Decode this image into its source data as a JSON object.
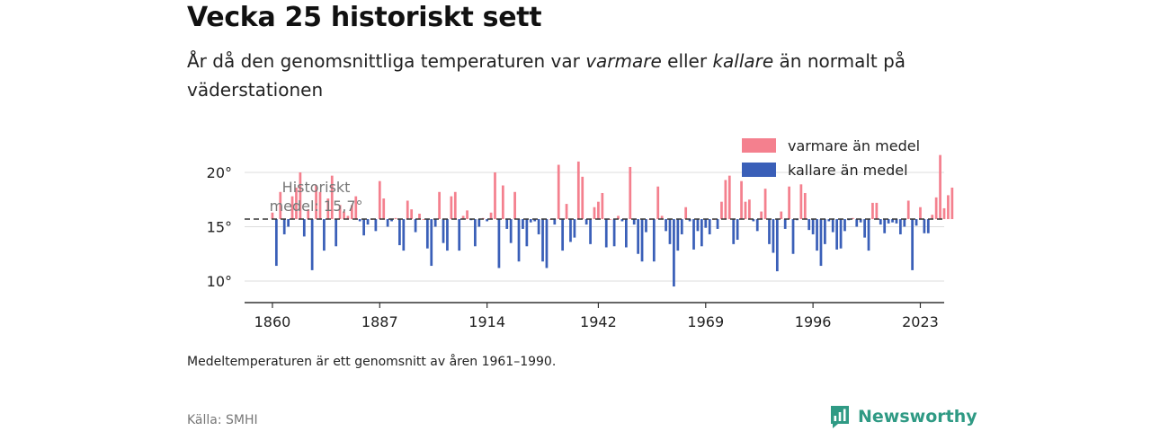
{
  "header": {
    "title": "Vecka 25 historiskt sett",
    "subtitle_part1": "År då den genomsnittliga temperaturen var ",
    "subtitle_em1": "varmare",
    "subtitle_part2": " eller ",
    "subtitle_em2": "kallare",
    "subtitle_part3": " än normalt på väderstationen"
  },
  "footer": {
    "note": "Medeltemperaturen är ett genomsnitt av åren 1961–1990.",
    "source": "Källa: SMHI",
    "brand": "Newsworthy",
    "brand_icon": "newsworthy-logo-icon"
  },
  "colors": {
    "warm": "#f4808e",
    "cold": "#3a5fb8",
    "baseline": "#333333",
    "grid": "#dddddd",
    "brand": "#2f9a84"
  },
  "chart_data": {
    "type": "bar",
    "baseline": 15.7,
    "baseline_label_line1": "Historiskt",
    "baseline_label_line2": "medel: 15,7°",
    "ylim": [
      8,
      22
    ],
    "y_ticks": [
      10,
      15,
      20
    ],
    "y_tick_labels": [
      "10°",
      "15°",
      "20°"
    ],
    "xlim": [
      1853,
      2029
    ],
    "x_ticks": [
      1860,
      1887,
      1914,
      1942,
      1969,
      1996,
      2023
    ],
    "x_tick_labels": [
      "1860",
      "1887",
      "1914",
      "1942",
      "1969",
      "1996",
      "2023"
    ],
    "legend": {
      "position": "top-right",
      "warm_label": "varmare än medel",
      "cold_label": "kallare än medel"
    },
    "start_year": 1860,
    "values": [
      16.3,
      11.4,
      18.2,
      14.3,
      15.0,
      17.8,
      18.6,
      20.0,
      14.1,
      16.6,
      11.0,
      18.8,
      18.2,
      12.8,
      17.6,
      19.7,
      13.2,
      17.0,
      16.4,
      16.0,
      17.0,
      17.8,
      15.5,
      14.2,
      15.2,
      15.7,
      14.6,
      19.2,
      17.6,
      15.0,
      15.5,
      15.8,
      13.3,
      12.8,
      17.4,
      16.6,
      14.5,
      16.2,
      15.7,
      13.0,
      11.4,
      15.0,
      18.2,
      13.5,
      12.8,
      17.8,
      18.2,
      12.8,
      16.0,
      16.5,
      15.6,
      13.2,
      15.0,
      15.8,
      15.5,
      16.3,
      20.0,
      11.2,
      18.8,
      14.8,
      13.5,
      18.2,
      11.8,
      14.8,
      13.2,
      15.4,
      15.5,
      14.3,
      11.8,
      11.2,
      15.7,
      15.2,
      20.7,
      12.8,
      17.1,
      13.6,
      14.0,
      21.0,
      19.6,
      15.2,
      13.4,
      16.8,
      17.3,
      18.1,
      13.1,
      15.7,
      13.2,
      16.0,
      15.5,
      13.1,
      20.5,
      15.2,
      12.5,
      11.8,
      14.5,
      15.7,
      11.8,
      18.7,
      16.0,
      14.6,
      13.4,
      9.5,
      12.8,
      14.3,
      16.8,
      15.5,
      12.9,
      14.6,
      13.2,
      14.9,
      14.3,
      15.7,
      14.8,
      17.3,
      19.3,
      19.7,
      13.4,
      13.8,
      19.2,
      17.3,
      17.5,
      15.5,
      14.6,
      16.4,
      18.5,
      13.4,
      12.6,
      10.9,
      16.4,
      14.8,
      18.7,
      12.5,
      15.6,
      18.9,
      18.1,
      14.7,
      14.3,
      12.8,
      11.4,
      13.4,
      15.5,
      14.5,
      12.9,
      13.0,
      14.6,
      15.6,
      15.8,
      15.0,
      15.4,
      14.0,
      12.8,
      17.2,
      17.2,
      15.2,
      14.4,
      15.3,
      15.4,
      15.3,
      14.3,
      15.0,
      17.4,
      11.0,
      15.1,
      16.8,
      14.4,
      14.4,
      16.1,
      17.7,
      21.6,
      16.7,
      17.9,
      18.6
    ]
  }
}
